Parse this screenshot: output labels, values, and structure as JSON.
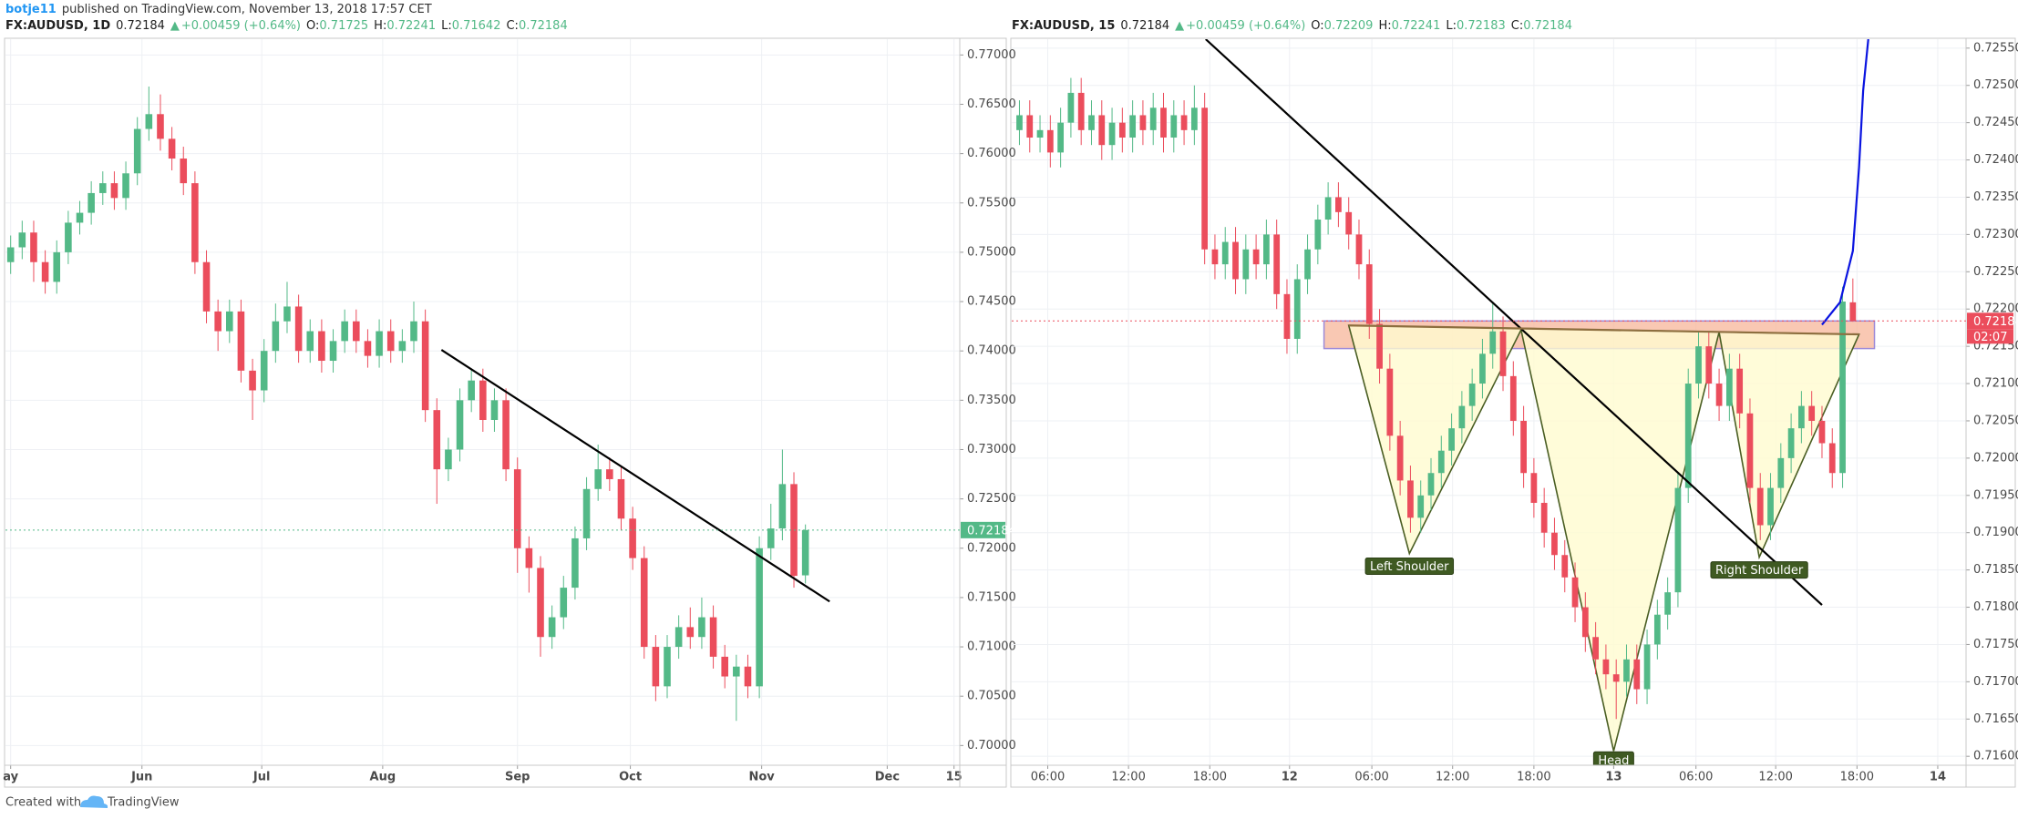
{
  "page_header": {
    "author": "botje11",
    "text": "published on TradingView.com, November 13, 2018 17:57 CET"
  },
  "footer": {
    "text": "Created with",
    "brand": "TradingView"
  },
  "chart_data": [
    {
      "type": "candlestick",
      "header": {
        "symbol": "FX:AUDUSD, 1D",
        "price": "0.72184",
        "arrow": "▲",
        "change": "+0.00459 (+0.64%)",
        "ohlc": [
          {
            "label": "O:",
            "value": "0.71725"
          },
          {
            "label": "H:",
            "value": "0.72241"
          },
          {
            "label": "L:",
            "value": "0.71642"
          },
          {
            "label": "C:",
            "value": "0.72184"
          }
        ]
      },
      "up_color": "#53b987",
      "down_color": "#eb4d5c",
      "grid": true,
      "open": [
        0.749,
        0.7505,
        0.752,
        0.749,
        0.747,
        0.75,
        0.753,
        0.754,
        0.756,
        0.757,
        0.7555,
        0.758,
        0.7625,
        0.764,
        0.7615,
        0.7595,
        0.757,
        0.749,
        0.744,
        0.742,
        0.744,
        0.738,
        0.736,
        0.74,
        0.743,
        0.7445,
        0.74,
        0.742,
        0.739,
        0.741,
        0.743,
        0.741,
        0.7395,
        0.742,
        0.74,
        0.741,
        0.743,
        0.734,
        0.728,
        0.73,
        0.735,
        0.737,
        0.733,
        0.735,
        0.728,
        0.72,
        0.718,
        0.711,
        0.713,
        0.716,
        0.721,
        0.726,
        0.728,
        0.727,
        0.723,
        0.719,
        0.71,
        0.706,
        0.71,
        0.712,
        0.711,
        0.713,
        0.709,
        0.707,
        0.708,
        0.706,
        0.72,
        0.722,
        0.7265,
        0.71725
      ],
      "high": [
        0.7517,
        0.7532,
        0.7532,
        0.7502,
        0.7512,
        0.7542,
        0.7552,
        0.7572,
        0.7582,
        0.7582,
        0.7592,
        0.7637,
        0.7668,
        0.766,
        0.7627,
        0.7607,
        0.7582,
        0.7502,
        0.7452,
        0.7452,
        0.7452,
        0.7392,
        0.7412,
        0.7448,
        0.747,
        0.7457,
        0.7432,
        0.7432,
        0.7422,
        0.7442,
        0.7442,
        0.7422,
        0.7432,
        0.7432,
        0.7422,
        0.745,
        0.7442,
        0.7352,
        0.7312,
        0.7362,
        0.7382,
        0.7382,
        0.7362,
        0.7362,
        0.7292,
        0.7212,
        0.7192,
        0.7142,
        0.7172,
        0.7222,
        0.7272,
        0.7305,
        0.7292,
        0.7282,
        0.7242,
        0.7202,
        0.7112,
        0.7112,
        0.7132,
        0.714,
        0.715,
        0.7142,
        0.7102,
        0.7092,
        0.7092,
        0.7212,
        0.7245,
        0.73,
        0.7277,
        0.72241
      ],
      "low": [
        0.7478,
        0.7493,
        0.747,
        0.7458,
        0.7458,
        0.7488,
        0.7518,
        0.7528,
        0.7548,
        0.7543,
        0.7543,
        0.7568,
        0.7613,
        0.7603,
        0.7583,
        0.7558,
        0.7478,
        0.7428,
        0.74,
        0.7408,
        0.7368,
        0.733,
        0.7348,
        0.7388,
        0.7418,
        0.7388,
        0.7388,
        0.7378,
        0.7378,
        0.7398,
        0.7398,
        0.7383,
        0.7383,
        0.7388,
        0.7388,
        0.7398,
        0.7328,
        0.7245,
        0.7268,
        0.7288,
        0.7338,
        0.7318,
        0.7318,
        0.7268,
        0.7175,
        0.7155,
        0.709,
        0.7098,
        0.7118,
        0.7148,
        0.7198,
        0.7248,
        0.7258,
        0.7218,
        0.7178,
        0.7088,
        0.7045,
        0.7048,
        0.7088,
        0.7098,
        0.7098,
        0.7078,
        0.7058,
        0.7025,
        0.7048,
        0.7048,
        0.7188,
        0.7208,
        0.716,
        0.71642
      ],
      "close": [
        0.7505,
        0.752,
        0.749,
        0.747,
        0.75,
        0.753,
        0.754,
        0.756,
        0.757,
        0.7555,
        0.758,
        0.7625,
        0.764,
        0.7615,
        0.7595,
        0.757,
        0.749,
        0.744,
        0.742,
        0.744,
        0.738,
        0.736,
        0.74,
        0.743,
        0.7445,
        0.74,
        0.742,
        0.739,
        0.741,
        0.743,
        0.741,
        0.7395,
        0.742,
        0.74,
        0.741,
        0.743,
        0.734,
        0.728,
        0.73,
        0.735,
        0.737,
        0.733,
        0.735,
        0.728,
        0.72,
        0.718,
        0.711,
        0.713,
        0.716,
        0.721,
        0.726,
        0.728,
        0.727,
        0.723,
        0.719,
        0.71,
        0.706,
        0.71,
        0.712,
        0.711,
        0.713,
        0.709,
        0.707,
        0.708,
        0.706,
        0.72,
        0.722,
        0.7265,
        0.7172,
        0.72184
      ],
      "xlim": [
        -0.45,
        82.4
      ],
      "xticks": [
        {
          "value": 0,
          "label": "ay"
        },
        {
          "value": 11.4,
          "label": "Jun"
        },
        {
          "value": 21.8,
          "label": "Jul"
        },
        {
          "value": 32.3,
          "label": "Aug"
        },
        {
          "value": 44,
          "label": "Sep"
        },
        {
          "value": 53.8,
          "label": "Oct"
        },
        {
          "value": 65.2,
          "label": "Nov"
        },
        {
          "value": 76.1,
          "label": "Dec"
        },
        {
          "value": 81.9,
          "label": "15"
        }
      ],
      "ylim": [
        0.698,
        0.7716
      ],
      "yticks": [
        {
          "value": 0.7,
          "label": "0.70000"
        },
        {
          "value": 0.705,
          "label": "0.70500"
        },
        {
          "value": 0.71,
          "label": "0.71000"
        },
        {
          "value": 0.715,
          "label": "0.71500"
        },
        {
          "value": 0.72,
          "label": "0.72000"
        },
        {
          "value": 0.725,
          "label": "0.72500"
        },
        {
          "value": 0.73,
          "label": "0.73000"
        },
        {
          "value": 0.735,
          "label": "0.73500"
        },
        {
          "value": 0.74,
          "label": "0.74000"
        },
        {
          "value": 0.745,
          "label": "0.74500"
        },
        {
          "value": 0.75,
          "label": "0.75000"
        },
        {
          "value": 0.755,
          "label": "0.75500"
        },
        {
          "value": 0.76,
          "label": "0.76000"
        },
        {
          "value": 0.765,
          "label": "0.76500"
        },
        {
          "value": 0.77,
          "label": "0.77000"
        }
      ],
      "last_price": 0.72184,
      "last_color": "#53b987",
      "drawings": [
        {
          "x": [
            37.4,
            71.1
          ],
          "y": [
            0.7401,
            0.7146
          ],
          "color": "#000000"
        }
      ]
    },
    {
      "type": "candlestick",
      "header": {
        "symbol": "FX:AUDUSD, 15",
        "price": "0.72184",
        "arrow": "▲",
        "change": "+0.00459 (+0.64%)",
        "ohlc": [
          {
            "label": "O:",
            "value": "0.72209"
          },
          {
            "label": "H:",
            "value": "0.72241"
          },
          {
            "label": "L:",
            "value": "0.72183"
          },
          {
            "label": "C:",
            "value": "0.72184"
          }
        ]
      },
      "up_color": "#53b987",
      "down_color": "#eb4d5c",
      "grid": true,
      "open": [
        0.7244,
        0.7246,
        0.7243,
        0.7244,
        0.7241,
        0.7245,
        0.7249,
        0.7244,
        0.7246,
        0.7242,
        0.7245,
        0.7243,
        0.7246,
        0.7244,
        0.7247,
        0.7243,
        0.7246,
        0.7244,
        0.7247,
        0.7228,
        0.7226,
        0.7229,
        0.7224,
        0.7228,
        0.7226,
        0.723,
        0.7222,
        0.7216,
        0.7224,
        0.7228,
        0.7232,
        0.7235,
        0.7233,
        0.723,
        0.7226,
        0.7218,
        0.7212,
        0.7203,
        0.7197,
        0.7192,
        0.7195,
        0.7198,
        0.7201,
        0.7204,
        0.7207,
        0.721,
        0.7214,
        0.7217,
        0.7211,
        0.7205,
        0.7198,
        0.7194,
        0.719,
        0.7187,
        0.7184,
        0.718,
        0.7176,
        0.7173,
        0.7171,
        0.717,
        0.7173,
        0.7169,
        0.7175,
        0.7179,
        0.7182,
        0.7196,
        0.721,
        0.7215,
        0.721,
        0.7207,
        0.7212,
        0.7206,
        0.7196,
        0.7191,
        0.7196,
        0.72,
        0.7204,
        0.7207,
        0.7205,
        0.7202,
        0.7198,
        0.72209
      ],
      "high": [
        0.7248,
        0.7248,
        0.7246,
        0.7246,
        0.7247,
        0.7251,
        0.7251,
        0.7248,
        0.7248,
        0.7247,
        0.7247,
        0.7248,
        0.7248,
        0.7249,
        0.7249,
        0.7248,
        0.7248,
        0.725,
        0.7249,
        0.723,
        0.7231,
        0.7231,
        0.723,
        0.723,
        0.7232,
        0.7232,
        0.7224,
        0.7226,
        0.723,
        0.7234,
        0.7237,
        0.7237,
        0.7235,
        0.7232,
        0.7228,
        0.722,
        0.7214,
        0.7205,
        0.7199,
        0.7197,
        0.72,
        0.7203,
        0.7206,
        0.7209,
        0.7212,
        0.7216,
        0.7221,
        0.7219,
        0.7213,
        0.7207,
        0.72,
        0.7196,
        0.7192,
        0.7189,
        0.7186,
        0.7182,
        0.7178,
        0.7175,
        0.7173,
        0.7175,
        0.7175,
        0.7177,
        0.7181,
        0.7184,
        0.7198,
        0.7212,
        0.7217,
        0.7217,
        0.7212,
        0.7214,
        0.7214,
        0.7208,
        0.7198,
        0.7198,
        0.7202,
        0.7206,
        0.7209,
        0.7209,
        0.7207,
        0.7204,
        0.7223,
        0.72241
      ],
      "low": [
        0.7242,
        0.7241,
        0.7241,
        0.7239,
        0.7239,
        0.7243,
        0.7242,
        0.7242,
        0.724,
        0.724,
        0.7241,
        0.7241,
        0.7242,
        0.7242,
        0.7241,
        0.7241,
        0.7242,
        0.7242,
        0.7226,
        0.7224,
        0.7224,
        0.7222,
        0.7222,
        0.7224,
        0.7224,
        0.722,
        0.7214,
        0.7214,
        0.7222,
        0.7226,
        0.723,
        0.7231,
        0.7228,
        0.7224,
        0.7216,
        0.721,
        0.7201,
        0.7195,
        0.719,
        0.719,
        0.7193,
        0.7196,
        0.7199,
        0.7202,
        0.7205,
        0.7208,
        0.7212,
        0.7209,
        0.7203,
        0.7196,
        0.7192,
        0.7188,
        0.7185,
        0.7182,
        0.7178,
        0.7174,
        0.7171,
        0.7169,
        0.7165,
        0.7168,
        0.7167,
        0.7167,
        0.7173,
        0.7177,
        0.718,
        0.7194,
        0.7208,
        0.7208,
        0.7205,
        0.7205,
        0.7204,
        0.7194,
        0.7189,
        0.7189,
        0.7194,
        0.7198,
        0.7202,
        0.7203,
        0.72,
        0.7196,
        0.7196,
        0.72183
      ],
      "close": [
        0.7246,
        0.7243,
        0.7244,
        0.7241,
        0.7245,
        0.7249,
        0.7244,
        0.7246,
        0.7242,
        0.7245,
        0.7243,
        0.7246,
        0.7244,
        0.7247,
        0.7243,
        0.7246,
        0.7244,
        0.7247,
        0.7228,
        0.7226,
        0.7229,
        0.7224,
        0.7228,
        0.7226,
        0.723,
        0.7222,
        0.7216,
        0.7224,
        0.7228,
        0.7232,
        0.7235,
        0.7233,
        0.723,
        0.7226,
        0.7218,
        0.7212,
        0.7203,
        0.7197,
        0.7192,
        0.7195,
        0.7198,
        0.7201,
        0.7204,
        0.7207,
        0.721,
        0.7214,
        0.7217,
        0.7211,
        0.7205,
        0.7198,
        0.7194,
        0.719,
        0.7187,
        0.7184,
        0.718,
        0.7176,
        0.7173,
        0.7171,
        0.717,
        0.7173,
        0.7169,
        0.7175,
        0.7179,
        0.7182,
        0.7196,
        0.721,
        0.7215,
        0.721,
        0.7207,
        0.7212,
        0.7206,
        0.7196,
        0.7191,
        0.7196,
        0.72,
        0.7204,
        0.7207,
        0.7205,
        0.7202,
        0.7198,
        0.7221,
        0.72184
      ],
      "xlim": [
        -0.75,
        92
      ],
      "xticks": [
        {
          "value": 2.75,
          "label": "06:00"
        },
        {
          "value": 10.6,
          "label": "12:00"
        },
        {
          "value": 18.5,
          "label": "18:00"
        },
        {
          "value": 26.25,
          "label": "12"
        },
        {
          "value": 34.25,
          "label": "06:00"
        },
        {
          "value": 42.1,
          "label": "12:00"
        },
        {
          "value": 50,
          "label": "18:00"
        },
        {
          "value": 57.75,
          "label": "13"
        },
        {
          "value": 65.75,
          "label": "06:00"
        },
        {
          "value": 73.5,
          "label": "12:00"
        },
        {
          "value": 81.4,
          "label": "18:00"
        },
        {
          "value": 89.25,
          "label": "14"
        }
      ],
      "ylim": [
        0.71588,
        0.72562
      ],
      "yticks": [
        {
          "value": 0.716,
          "label": "0.71600"
        },
        {
          "value": 0.7165,
          "label": "0.71650"
        },
        {
          "value": 0.717,
          "label": "0.71700"
        },
        {
          "value": 0.7175,
          "label": "0.71750"
        },
        {
          "value": 0.718,
          "label": "0.71800"
        },
        {
          "value": 0.7185,
          "label": "0.71850"
        },
        {
          "value": 0.719,
          "label": "0.71900"
        },
        {
          "value": 0.7195,
          "label": "0.71950"
        },
        {
          "value": 0.72,
          "label": "0.72000"
        },
        {
          "value": 0.7205,
          "label": "0.72050"
        },
        {
          "value": 0.721,
          "label": "0.72100"
        },
        {
          "value": 0.7215,
          "label": "0.72150"
        },
        {
          "value": 0.722,
          "label": "0.72200"
        },
        {
          "value": 0.7225,
          "label": "0.72250"
        },
        {
          "value": 0.723,
          "label": "0.72300"
        },
        {
          "value": 0.7235,
          "label": "0.72350"
        },
        {
          "value": 0.724,
          "label": "0.72400"
        },
        {
          "value": 0.7245,
          "label": "0.72450"
        },
        {
          "value": 0.725,
          "label": "0.72500"
        },
        {
          "value": 0.7255,
          "label": "0.72550"
        }
      ],
      "last_price": 0.72184,
      "last_color": "#eb4d5c",
      "countdown": "02:07",
      "zone": {
        "x": [
          29.6,
          83.1
        ],
        "y": [
          0.72147,
          0.72184
        ],
        "fill": "#f7b59a",
        "stroke": "#9c8ad8"
      },
      "pattern": {
        "x": [
          32,
          37.9,
          48.75,
          57.75,
          68,
          71.9,
          81.6
        ],
        "y": [
          0.72178,
          0.71872,
          0.72172,
          0.71607,
          0.72169,
          0.71867,
          0.72166
        ],
        "fill": "#fffbd0",
        "stroke": "#4a5e23"
      },
      "pattern_labels": [
        {
          "text": "Left Shoulder",
          "x": 37.9,
          "y": 0.71855
        },
        {
          "text": "Head",
          "x": 57.75,
          "y": 0.71595
        },
        {
          "text": "Right Shoulder",
          "x": 71.9,
          "y": 0.7185
        }
      ],
      "drawings": [
        {
          "x": [
            18.1,
            78
          ],
          "y": [
            0.72562,
            0.71803
          ],
          "color": "#000000"
        },
        {
          "x": [
            32,
            81.6
          ],
          "y": [
            0.72178,
            0.72166
          ],
          "color": "#8d6e3f"
        },
        {
          "x": [
            78,
            79.75,
            81,
            81.6,
            82,
            82.5
          ],
          "y": [
            0.72179,
            0.72209,
            0.72278,
            0.7239,
            0.72493,
            0.72562
          ],
          "color": "#0a14e0"
        }
      ]
    }
  ]
}
